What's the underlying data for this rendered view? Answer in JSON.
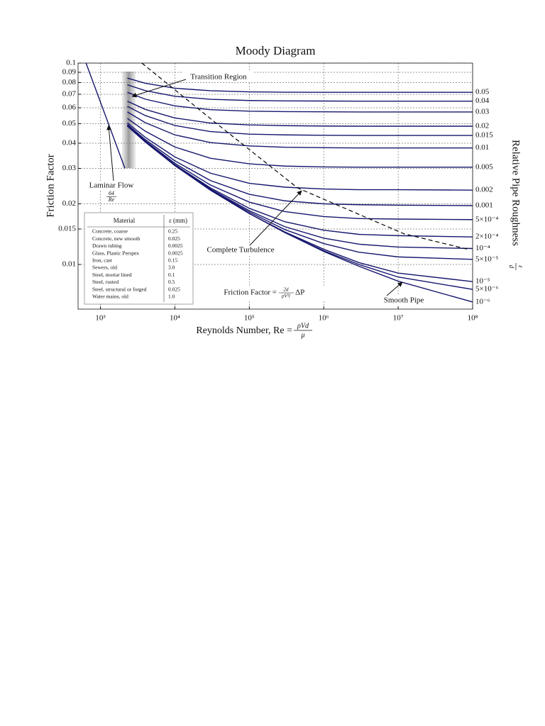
{
  "chart_data": {
    "type": "line",
    "title": "Moody Diagram",
    "x_label": {
      "text": "Reynolds Number, Re =",
      "num": "ρVd",
      "den": "μ"
    },
    "y_label": "Friction Factor",
    "roughness_label": {
      "text": "Relative Pipe Roughness",
      "num": "ε",
      "den": "d"
    },
    "xscale": "log",
    "yscale": "log",
    "grid": true,
    "xlim": [
      500,
      100000000
    ],
    "ylim": [
      0.006,
      0.1
    ],
    "xticks": [
      {
        "value": 1000,
        "label": "10³"
      },
      {
        "value": 10000,
        "label": "10⁴"
      },
      {
        "value": 100000,
        "label": "10⁵"
      },
      {
        "value": 1000000,
        "label": "10⁶"
      },
      {
        "value": 10000000,
        "label": "10⁷"
      },
      {
        "value": 100000000,
        "label": "10⁸"
      }
    ],
    "yticks": [
      0.1,
      0.09,
      0.08,
      0.07,
      0.06,
      0.05,
      0.04,
      0.03,
      0.02,
      0.015,
      0.01
    ],
    "x": [
      2300,
      4000,
      10000,
      30000,
      100000,
      300000,
      1000000,
      3000000,
      10000000,
      100000000
    ],
    "series": [
      {
        "name": "0.05",
        "color": "#16166e",
        "values": [
          0.0842,
          0.0794,
          0.075,
          0.0729,
          0.072,
          0.0717,
          0.0716,
          0.0716,
          0.0716,
          0.0716
        ]
      },
      {
        "name": "0.04",
        "color": "#16166e",
        "values": [
          0.078,
          0.073,
          0.0684,
          0.0661,
          0.0652,
          0.0649,
          0.0648,
          0.0647,
          0.0647,
          0.0647
        ]
      },
      {
        "name": "0.03",
        "color": "#16166e",
        "values": [
          0.0716,
          0.0662,
          0.0613,
          0.0587,
          0.0577,
          0.0574,
          0.0573,
          0.0572,
          0.0572,
          0.0572
        ]
      },
      {
        "name": "0.02",
        "color": "#16166e",
        "values": [
          0.0647,
          0.0589,
          0.0534,
          0.0504,
          0.0493,
          0.0489,
          0.0487,
          0.0486,
          0.0486,
          0.0486
        ]
      },
      {
        "name": "0.015",
        "color": "#16166e",
        "values": [
          0.061,
          0.0549,
          0.049,
          0.0457,
          0.0444,
          0.044,
          0.0438,
          0.0437,
          0.0437,
          0.0437
        ]
      },
      {
        "name": "0.01",
        "color": "#16166e",
        "values": [
          0.0572,
          0.0506,
          0.044,
          0.0403,
          0.0388,
          0.0382,
          0.038,
          0.0379,
          0.0379,
          0.0379
        ]
      },
      {
        "name": "0.005",
        "color": "#16166e",
        "values": [
          0.0531,
          0.0459,
          0.0383,
          0.0337,
          0.0316,
          0.0308,
          0.0305,
          0.0304,
          0.0304,
          0.0304
        ]
      },
      {
        "name": "0.002",
        "color": "#16166e",
        "values": [
          0.0505,
          0.0428,
          0.0342,
          0.0284,
          0.0253,
          0.0242,
          0.0237,
          0.0235,
          0.0235,
          0.0234
        ]
      },
      {
        "name": "0.001",
        "color": "#16166e",
        "values": [
          0.0496,
          0.0417,
          0.0327,
          0.0261,
          0.0223,
          0.0207,
          0.02,
          0.0198,
          0.0197,
          0.0196
        ]
      },
      {
        "name": "5×10⁻⁴",
        "color": "#16166e",
        "values": [
          0.0491,
          0.0411,
          0.0318,
          0.0248,
          0.0204,
          0.0183,
          0.0173,
          0.0169,
          0.0168,
          0.0167
        ]
      },
      {
        "name": "2×10⁻⁴",
        "color": "#16166e",
        "values": [
          0.0489,
          0.0408,
          0.0313,
          0.024,
          0.019,
          0.0163,
          0.0148,
          0.0141,
          0.0139,
          0.0137
        ]
      },
      {
        "name": "10⁻⁴",
        "color": "#16166e",
        "values": [
          0.0488,
          0.0407,
          0.0311,
          0.0237,
          0.0185,
          0.0154,
          0.0135,
          0.0126,
          0.0122,
          0.012
        ]
      },
      {
        "name": "5×10⁻⁵",
        "color": "#16166e",
        "values": [
          0.0487,
          0.0406,
          0.0311,
          0.0235,
          0.0182,
          0.0149,
          0.0127,
          0.0115,
          0.0109,
          0.0106
        ]
      },
      {
        "name": "10⁻⁵",
        "color": "#16166e",
        "values": [
          0.0487,
          0.0406,
          0.031,
          0.0234,
          0.0179,
          0.0145,
          0.0119,
          0.0102,
          0.00906,
          0.00822
        ]
      },
      {
        "name": "5×10⁻⁶",
        "color": "#16166e",
        "values": [
          0.0487,
          0.0406,
          0.031,
          0.0234,
          0.0179,
          0.0144,
          0.0117,
          0.00998,
          0.00866,
          0.00752
        ]
      },
      {
        "name": "10⁻⁶",
        "color": "#16166e",
        "values": [
          0.0487,
          0.0406,
          0.031,
          0.0234,
          0.0179,
          0.0144,
          0.0116,
          0.00978,
          0.00826,
          0.00651
        ]
      }
    ],
    "laminar": {
      "color": "#16166e",
      "x": [
        640,
        2133
      ],
      "values": [
        0.1,
        0.03
      ]
    },
    "turbulence_boundary": {
      "color": "#000000",
      "x": [
        3600,
        32000,
        444000,
        12000000,
        86000000
      ],
      "values": [
        0.1,
        0.052,
        0.024,
        0.0142,
        0.0119
      ]
    },
    "annotations": {
      "transition": "Transition Region",
      "laminar": "Laminar Flow",
      "laminar_num": "64",
      "laminar_den": "Re",
      "complete": "Complete Turbulence",
      "smooth": "Smooth Pipe",
      "ff_lhs": "Friction Factor =",
      "ff_num": "2d",
      "ff_den": "ρV²l",
      "ff_rhs": "ΔP"
    },
    "table": {
      "header": [
        "Material",
        "ε (mm)"
      ],
      "rows": [
        [
          "Concrete, coarse",
          "0.25"
        ],
        [
          "Concrete, new smooth",
          "0.025"
        ],
        [
          "Drawn tubing",
          "0.0025"
        ],
        [
          "Glass, Plastic Perspex",
          "0.0025"
        ],
        [
          "Iron, cast",
          "0.15"
        ],
        [
          "Sewers, old",
          "3.0"
        ],
        [
          "Steel, mortar lined",
          "0.1"
        ],
        [
          "Steel, rusted",
          "0.5"
        ],
        [
          "Steel, structural or forged",
          "0.025"
        ],
        [
          "Water mains, old",
          "1.0"
        ]
      ]
    }
  }
}
